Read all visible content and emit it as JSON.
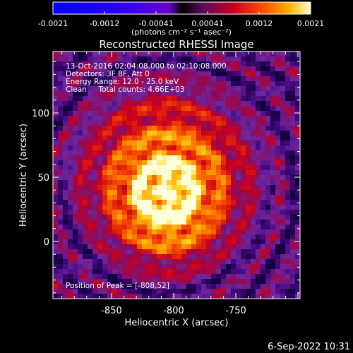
{
  "colorbar": {
    "tick_labels": [
      "-0.0021",
      "-0.0012",
      "-0.00041",
      "0.00041",
      "0.0012",
      "0.0021"
    ],
    "unit_label": "(photons cm⁻² s⁻¹ asec⁻²)"
  },
  "plot": {
    "title": "Reconstructed RHESSI Image",
    "info_lines": [
      "13-Oct-2016 02:04:08.000 to 02:10:08.000",
      "Detectors: 3F 8F, Att 0",
      "Energy Range: 12.0 - 25.0 keV",
      "Clean     Total counts: 4.66E+03"
    ],
    "peak_label": "Position of Peak = [-808,52]",
    "xlabel": "Heliocentric X (arcsec)",
    "ylabel": "Heliocentric Y (arcsec)",
    "xticks": [
      "-850",
      "-800",
      "-750"
    ],
    "yticks": [
      "100",
      "50",
      "0"
    ]
  },
  "footer": {
    "timestamp": "6-Sep-2022 10:31"
  },
  "colors": {
    "background": "#000000",
    "foreground": "#ffffff"
  }
}
